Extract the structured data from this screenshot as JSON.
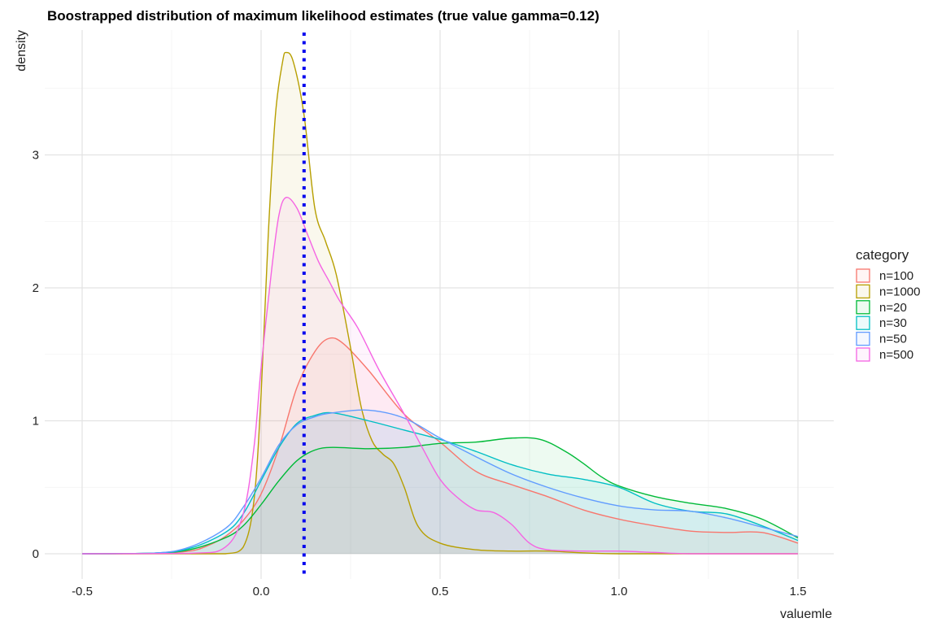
{
  "chart_data": {
    "type": "area",
    "title": "Boostrapped distribution of maximum likelihood estimates  (true value gamma=0.12)",
    "xlabel": "valuemle",
    "ylabel": "density",
    "xlim": [
      -0.6,
      1.6
    ],
    "ylim": [
      -0.18,
      3.9
    ],
    "x_ticks": [
      -0.5,
      0.0,
      0.5,
      1.0,
      1.5
    ],
    "x_tick_labels": [
      "-0.5",
      "0.0",
      "0.5",
      "1.0",
      "1.5"
    ],
    "y_ticks": [
      0,
      1,
      2,
      3
    ],
    "y_tick_labels": [
      "0",
      "1",
      "2",
      "3"
    ],
    "grid": true,
    "legend": {
      "title": "category",
      "position": "right"
    },
    "reference_line": {
      "x": 0.12,
      "style": "dotted",
      "color": "#0000ee"
    },
    "series": [
      {
        "name": "n=100",
        "color": "#F8766D",
        "points": [
          [
            -0.5,
            0
          ],
          [
            -0.3,
            0.003
          ],
          [
            -0.2,
            0.02
          ],
          [
            -0.15,
            0.06
          ],
          [
            -0.1,
            0.13
          ],
          [
            -0.05,
            0.25
          ],
          [
            0.0,
            0.45
          ],
          [
            0.05,
            0.8
          ],
          [
            0.1,
            1.25
          ],
          [
            0.15,
            1.52
          ],
          [
            0.19,
            1.62
          ],
          [
            0.23,
            1.58
          ],
          [
            0.3,
            1.38
          ],
          [
            0.4,
            1.05
          ],
          [
            0.5,
            0.84
          ],
          [
            0.6,
            0.62
          ],
          [
            0.7,
            0.52
          ],
          [
            0.8,
            0.43
          ],
          [
            0.9,
            0.33
          ],
          [
            1.0,
            0.26
          ],
          [
            1.1,
            0.21
          ],
          [
            1.2,
            0.17
          ],
          [
            1.3,
            0.16
          ],
          [
            1.4,
            0.16
          ],
          [
            1.5,
            0.08
          ]
        ]
      },
      {
        "name": "n=1000",
        "color": "#B79F00",
        "points": [
          [
            -0.5,
            0
          ],
          [
            -0.2,
            0
          ],
          [
            -0.1,
            0
          ],
          [
            -0.05,
            0.05
          ],
          [
            -0.02,
            0.4
          ],
          [
            0.0,
            1.2
          ],
          [
            0.02,
            2.4
          ],
          [
            0.04,
            3.3
          ],
          [
            0.06,
            3.7
          ],
          [
            0.07,
            3.77
          ],
          [
            0.09,
            3.7
          ],
          [
            0.12,
            3.3
          ],
          [
            0.15,
            2.6
          ],
          [
            0.18,
            2.35
          ],
          [
            0.21,
            2.1
          ],
          [
            0.25,
            1.55
          ],
          [
            0.28,
            1.1
          ],
          [
            0.31,
            0.85
          ],
          [
            0.34,
            0.75
          ],
          [
            0.37,
            0.68
          ],
          [
            0.4,
            0.5
          ],
          [
            0.44,
            0.2
          ],
          [
            0.5,
            0.08
          ],
          [
            0.6,
            0.03
          ],
          [
            0.7,
            0.02
          ],
          [
            0.8,
            0.02
          ],
          [
            1.0,
            0
          ],
          [
            1.5,
            0
          ]
        ]
      },
      {
        "name": "n=20",
        "color": "#00BA38",
        "points": [
          [
            -0.5,
            0
          ],
          [
            -0.3,
            0.005
          ],
          [
            -0.2,
            0.03
          ],
          [
            -0.1,
            0.12
          ],
          [
            -0.05,
            0.21
          ],
          [
            0.0,
            0.37
          ],
          [
            0.05,
            0.55
          ],
          [
            0.1,
            0.7
          ],
          [
            0.15,
            0.78
          ],
          [
            0.2,
            0.8
          ],
          [
            0.3,
            0.79
          ],
          [
            0.4,
            0.8
          ],
          [
            0.5,
            0.83
          ],
          [
            0.6,
            0.84
          ],
          [
            0.7,
            0.87
          ],
          [
            0.78,
            0.86
          ],
          [
            0.85,
            0.77
          ],
          [
            0.9,
            0.68
          ],
          [
            0.95,
            0.58
          ],
          [
            1.0,
            0.51
          ],
          [
            1.1,
            0.43
          ],
          [
            1.2,
            0.38
          ],
          [
            1.3,
            0.34
          ],
          [
            1.4,
            0.26
          ],
          [
            1.5,
            0.12
          ]
        ]
      },
      {
        "name": "n=30",
        "color": "#00BFC4",
        "points": [
          [
            -0.5,
            0
          ],
          [
            -0.3,
            0.005
          ],
          [
            -0.2,
            0.04
          ],
          [
            -0.1,
            0.16
          ],
          [
            -0.05,
            0.3
          ],
          [
            0.0,
            0.55
          ],
          [
            0.05,
            0.8
          ],
          [
            0.1,
            0.98
          ],
          [
            0.15,
            1.04
          ],
          [
            0.2,
            1.06
          ],
          [
            0.3,
            1.0
          ],
          [
            0.4,
            0.93
          ],
          [
            0.5,
            0.86
          ],
          [
            0.6,
            0.77
          ],
          [
            0.7,
            0.67
          ],
          [
            0.8,
            0.6
          ],
          [
            0.9,
            0.56
          ],
          [
            1.0,
            0.5
          ],
          [
            1.1,
            0.38
          ],
          [
            1.2,
            0.32
          ],
          [
            1.3,
            0.3
          ],
          [
            1.4,
            0.21
          ],
          [
            1.5,
            0.1
          ]
        ]
      },
      {
        "name": "n=50",
        "color": "#619CFF",
        "points": [
          [
            -0.5,
            0
          ],
          [
            -0.3,
            0.005
          ],
          [
            -0.2,
            0.05
          ],
          [
            -0.1,
            0.19
          ],
          [
            -0.05,
            0.35
          ],
          [
            0.0,
            0.57
          ],
          [
            0.05,
            0.82
          ],
          [
            0.1,
            0.97
          ],
          [
            0.15,
            1.03
          ],
          [
            0.2,
            1.06
          ],
          [
            0.3,
            1.08
          ],
          [
            0.4,
            1.02
          ],
          [
            0.5,
            0.87
          ],
          [
            0.6,
            0.73
          ],
          [
            0.7,
            0.6
          ],
          [
            0.8,
            0.5
          ],
          [
            0.9,
            0.42
          ],
          [
            1.0,
            0.36
          ],
          [
            1.1,
            0.33
          ],
          [
            1.2,
            0.32
          ],
          [
            1.3,
            0.27
          ],
          [
            1.4,
            0.2
          ],
          [
            1.5,
            0.13
          ]
        ]
      },
      {
        "name": "n=500",
        "color": "#F564E3",
        "points": [
          [
            -0.5,
            0
          ],
          [
            -0.2,
            0.003
          ],
          [
            -0.1,
            0.05
          ],
          [
            -0.05,
            0.3
          ],
          [
            -0.02,
            0.8
          ],
          [
            0.0,
            1.4
          ],
          [
            0.03,
            2.15
          ],
          [
            0.05,
            2.55
          ],
          [
            0.07,
            2.68
          ],
          [
            0.1,
            2.6
          ],
          [
            0.13,
            2.4
          ],
          [
            0.16,
            2.2
          ],
          [
            0.19,
            2.05
          ],
          [
            0.22,
            1.9
          ],
          [
            0.27,
            1.7
          ],
          [
            0.33,
            1.38
          ],
          [
            0.4,
            1.05
          ],
          [
            0.45,
            0.8
          ],
          [
            0.5,
            0.56
          ],
          [
            0.55,
            0.42
          ],
          [
            0.6,
            0.33
          ],
          [
            0.65,
            0.31
          ],
          [
            0.7,
            0.22
          ],
          [
            0.75,
            0.08
          ],
          [
            0.8,
            0.03
          ],
          [
            0.9,
            0.02
          ],
          [
            1.0,
            0.02
          ],
          [
            1.1,
            0.01
          ],
          [
            1.2,
            0
          ],
          [
            1.5,
            0
          ]
        ]
      }
    ]
  }
}
